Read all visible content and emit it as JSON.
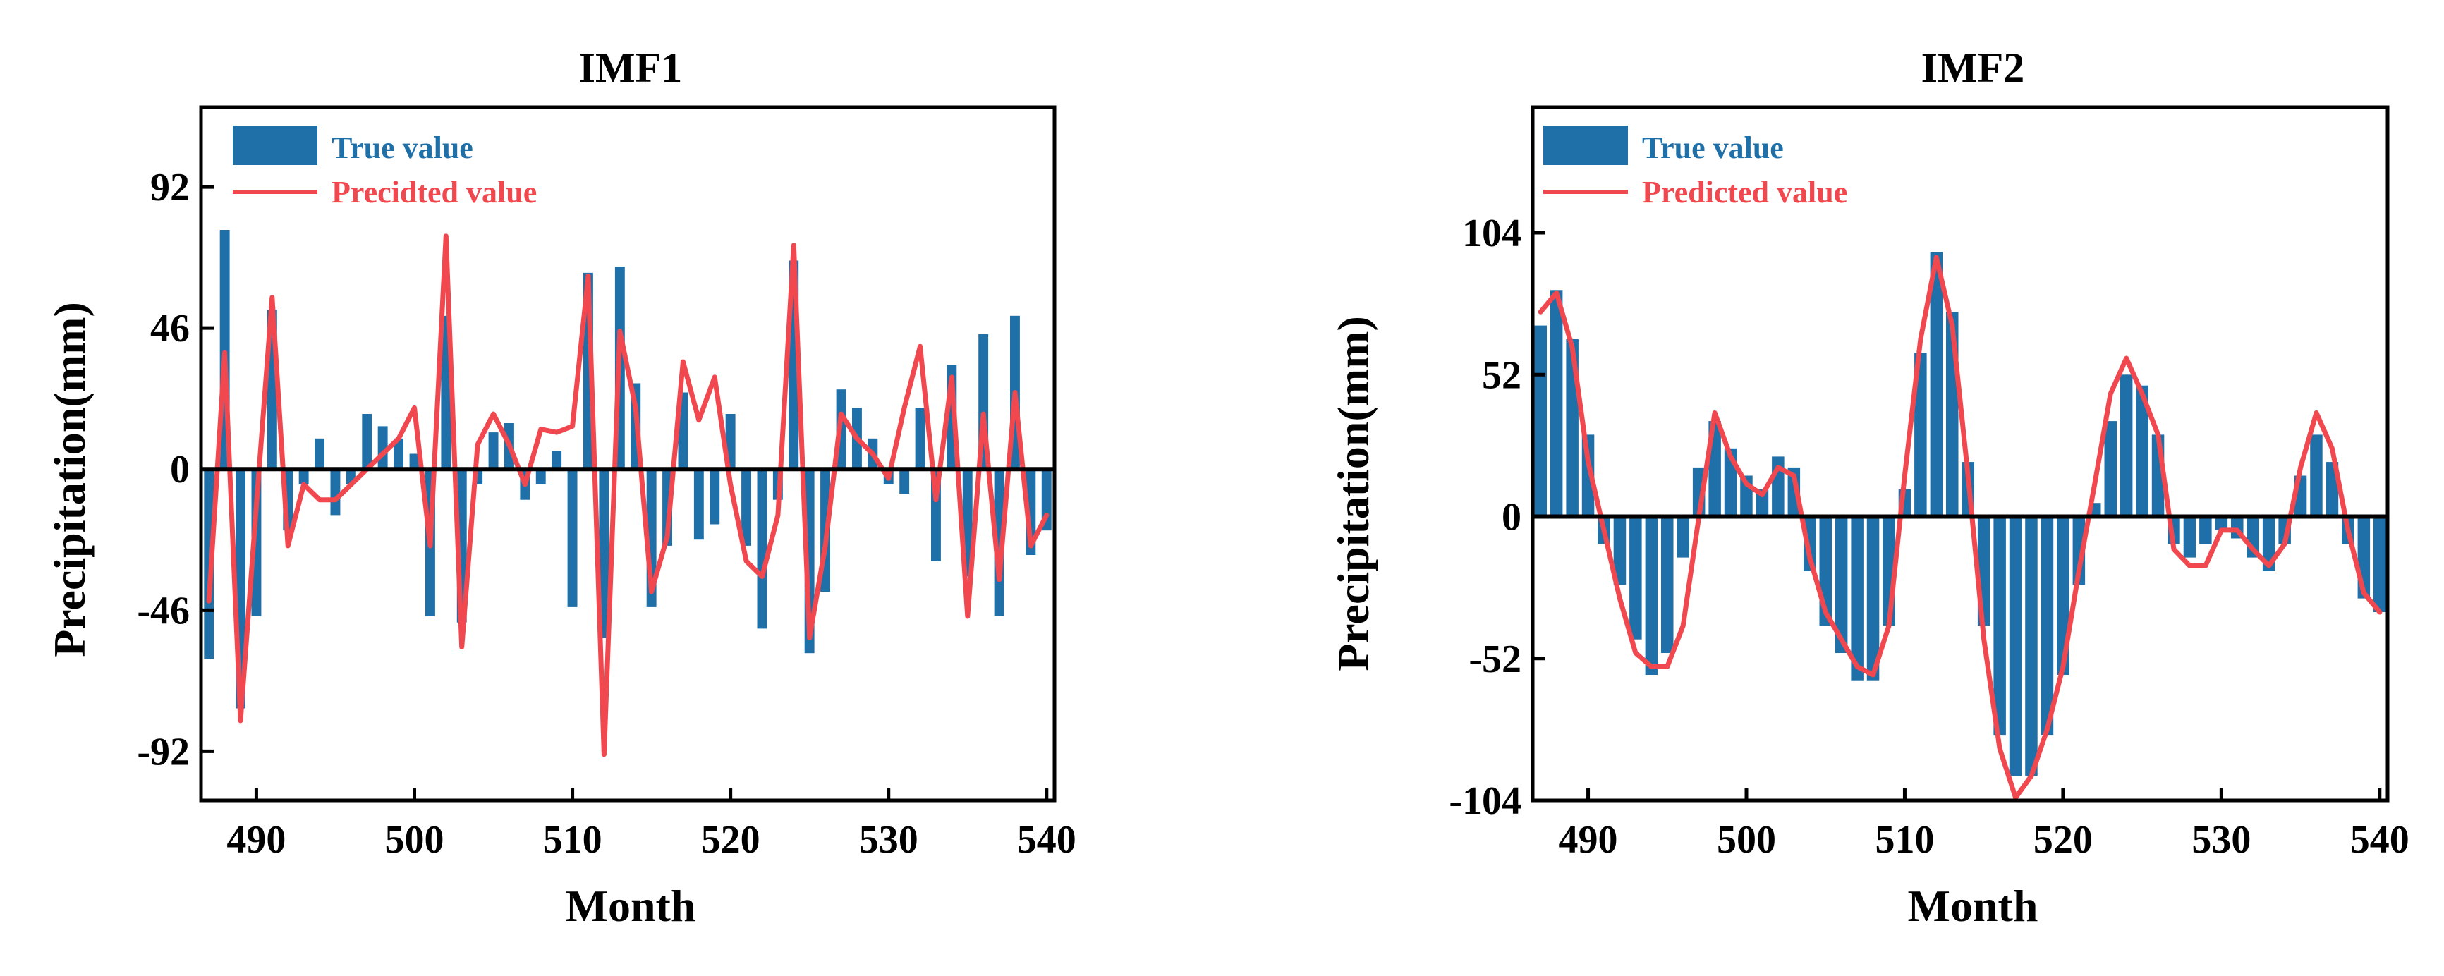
{
  "chart_data": [
    {
      "type": "bar",
      "title": "IMF1",
      "xlabel": "Month",
      "ylabel": "Precipitation(mm)",
      "xlim": [
        486.5,
        540.5
      ],
      "ylim": [
        -108,
        118
      ],
      "xticks": [
        490,
        500,
        510,
        520,
        530,
        540
      ],
      "yticks": [
        -92,
        -46,
        0,
        46,
        92
      ],
      "legend": "top-left",
      "colors": {
        "bar": "#1f6fa8",
        "line": "#f0484e",
        "zero": "#000000"
      },
      "x": [
        487,
        488,
        489,
        490,
        491,
        492,
        493,
        494,
        495,
        496,
        497,
        498,
        499,
        500,
        501,
        502,
        503,
        504,
        505,
        506,
        507,
        508,
        509,
        510,
        511,
        512,
        513,
        514,
        515,
        516,
        517,
        518,
        519,
        520,
        521,
        522,
        523,
        524,
        525,
        526,
        527,
        528,
        529,
        530,
        531,
        532,
        533,
        534,
        535,
        536,
        537,
        538,
        539,
        540
      ],
      "series": [
        {
          "name": "True value",
          "kind": "bar",
          "values": [
            -62,
            78,
            -78,
            -48,
            52,
            -20,
            -5,
            10,
            -15,
            -5,
            18,
            14,
            10,
            5,
            -48,
            50,
            -50,
            -5,
            12,
            15,
            -10,
            -5,
            6,
            -45,
            64,
            -55,
            66,
            28,
            -45,
            -25,
            25,
            -23,
            -18,
            18,
            -25,
            -52,
            -10,
            68,
            -60,
            -40,
            26,
            20,
            10,
            -5,
            -8,
            20,
            -30,
            34,
            -35,
            44,
            -48,
            50,
            -28,
            -20
          ]
        },
        {
          "name": "Precidted value",
          "kind": "line",
          "values": [
            -43,
            38,
            -82,
            -12,
            56,
            -25,
            -5,
            -10,
            -10,
            -5,
            0,
            5,
            10,
            20,
            -25,
            76,
            -58,
            8,
            18,
            8,
            -5,
            13,
            12,
            14,
            63,
            -93,
            45,
            20,
            -40,
            -22,
            35,
            16,
            30,
            -5,
            -30,
            -35,
            -15,
            73,
            -55,
            -25,
            18,
            10,
            5,
            -3,
            20,
            40,
            -10,
            30,
            -48,
            18,
            -36,
            25,
            -25,
            -15
          ]
        }
      ]
    },
    {
      "type": "bar",
      "title": "IMF2",
      "xlabel": "Month",
      "ylabel": "Precipitation(mm)",
      "xlim": [
        486.5,
        540.5
      ],
      "ylim": [
        -104,
        150
      ],
      "xticks": [
        490,
        500,
        510,
        520,
        530,
        540
      ],
      "yticks": [
        -104,
        -52,
        0,
        52,
        104
      ],
      "legend": "top-left",
      "colors": {
        "bar": "#1f6fa8",
        "line": "#f0484e",
        "zero": "#000000"
      },
      "x": [
        487,
        488,
        489,
        490,
        491,
        492,
        493,
        494,
        495,
        496,
        497,
        498,
        499,
        500,
        501,
        502,
        503,
        504,
        505,
        506,
        507,
        508,
        509,
        510,
        511,
        512,
        513,
        514,
        515,
        516,
        517,
        518,
        519,
        520,
        521,
        522,
        523,
        524,
        525,
        526,
        527,
        528,
        529,
        530,
        531,
        532,
        533,
        534,
        535,
        536,
        537,
        538,
        539,
        540
      ],
      "series": [
        {
          "name": "True value",
          "kind": "bar",
          "values": [
            70,
            83,
            65,
            30,
            -10,
            -25,
            -45,
            -58,
            -50,
            -15,
            18,
            35,
            25,
            15,
            10,
            22,
            18,
            -20,
            -40,
            -50,
            -60,
            -60,
            -40,
            10,
            60,
            97,
            75,
            20,
            -40,
            -80,
            -95,
            -95,
            -80,
            -58,
            -25,
            5,
            35,
            52,
            48,
            30,
            -10,
            -15,
            -10,
            -5,
            -8,
            -15,
            -20,
            -10,
            15,
            30,
            20,
            -10,
            -30,
            -35
          ]
        },
        {
          "name": "Predicted value",
          "kind": "line",
          "values": [
            75,
            82,
            62,
            20,
            -5,
            -30,
            -50,
            -55,
            -55,
            -40,
            0,
            38,
            22,
            12,
            8,
            18,
            15,
            -15,
            -35,
            -45,
            -55,
            -58,
            -40,
            15,
            65,
            95,
            70,
            15,
            -45,
            -85,
            -103,
            -95,
            -78,
            -55,
            -20,
            12,
            45,
            58,
            45,
            30,
            -12,
            -18,
            -18,
            -5,
            -5,
            -12,
            -18,
            -10,
            18,
            38,
            25,
            -5,
            -28,
            -35
          ]
        }
      ]
    }
  ]
}
